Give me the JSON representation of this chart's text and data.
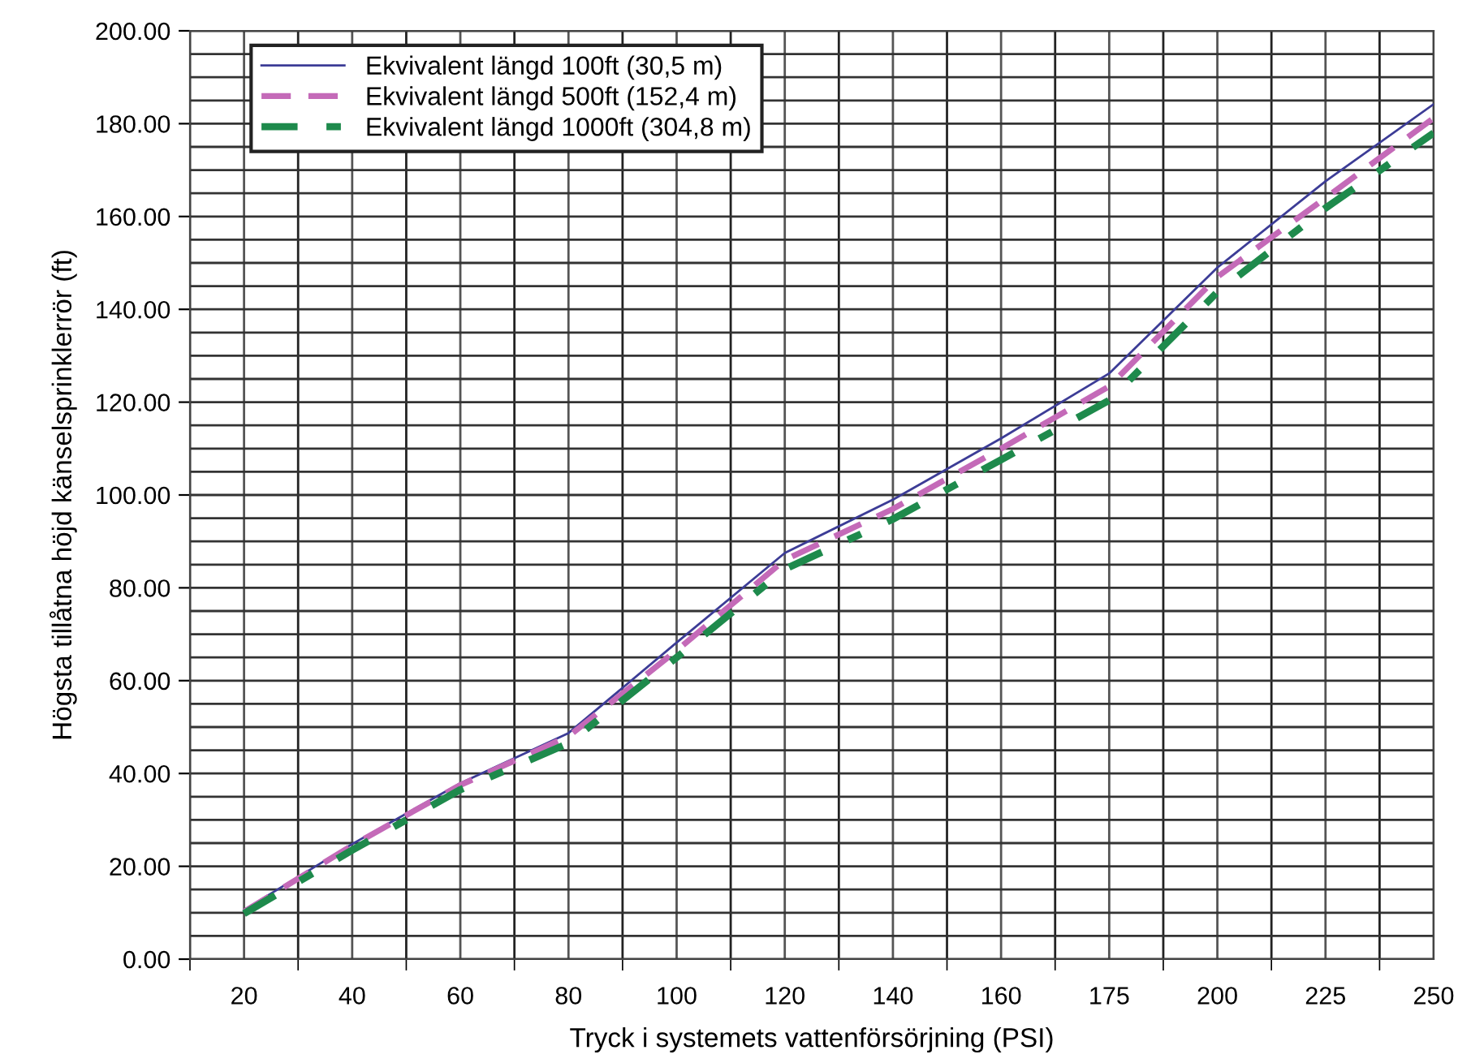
{
  "chart_data": {
    "type": "line",
    "xlabel": "Tryck i systemets vattenförsörjning (PSI)",
    "ylabel": "Högsta tillåtna höjd känselsprinklerrör (ft)",
    "categories": [
      "20",
      "40",
      "60",
      "80",
      "100",
      "120",
      "140",
      "160",
      "175",
      "200",
      "225",
      "250"
    ],
    "series": [
      {
        "name": "Ekvivalent längd 100ft (30,5 m)",
        "color": "#3c3c96",
        "line_style": "solid",
        "values": [
          10.6,
          24.8,
          37.9,
          48.7,
          68.2,
          87.5,
          99,
          112.2,
          126.2,
          149,
          167.6,
          184.2
        ]
      },
      {
        "name": "Ekvivalent längd 500ft (152,4 m)",
        "color": "#c46ab8",
        "line_style": "dashed",
        "values": [
          10.2,
          24.5,
          37.5,
          48,
          66.5,
          86,
          97,
          110,
          123.4,
          147,
          164,
          181.2
        ]
      },
      {
        "name": "Ekvivalent längd 1000ft (304,8 m)",
        "color": "#1e8a4c",
        "line_style": "dashed",
        "values": [
          9.8,
          23.5,
          36.5,
          46.5,
          65,
          84,
          94.8,
          107.6,
          120.4,
          143.7,
          161.8,
          178
        ]
      }
    ],
    "ylim": [
      0,
      200
    ],
    "yticks": [
      {
        "value": 0,
        "label": "0.00"
      },
      {
        "value": 20,
        "label": "20.00"
      },
      {
        "value": 40,
        "label": "40.00"
      },
      {
        "value": 60,
        "label": "60.00"
      },
      {
        "value": 80,
        "label": "80.00"
      },
      {
        "value": 100,
        "label": "100.00"
      },
      {
        "value": 120,
        "label": "120.00"
      },
      {
        "value": 140,
        "label": "140.00"
      },
      {
        "value": 160,
        "label": "160.00"
      },
      {
        "value": 180,
        "label": "180.00"
      },
      {
        "value": 200,
        "label": "200.00"
      }
    ],
    "grid": true,
    "legend": "top left",
    "marker": "none"
  }
}
